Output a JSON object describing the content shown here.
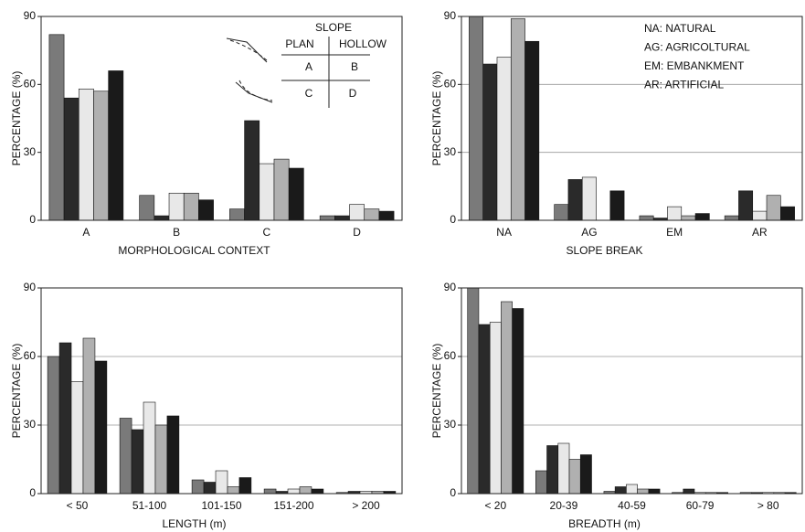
{
  "chart_data": [
    {
      "type": "bar",
      "x_label": "MORPHOLOGICAL CONTEXT",
      "y_label": "PERCENTAGE (%)",
      "categories": [
        "A",
        "B",
        "C",
        "D"
      ],
      "series": [
        {
          "color": "#7a7a7a",
          "values": [
            82,
            11,
            5,
            2
          ]
        },
        {
          "color": "#2a2a2a",
          "values": [
            54,
            2,
            44,
            2
          ]
        },
        {
          "color": "#e8e8e8",
          "values": [
            58,
            12,
            25,
            7
          ]
        },
        {
          "color": "#b0b0b0",
          "values": [
            57,
            12,
            27,
            5
          ]
        },
        {
          "color": "#1a1a1a",
          "values": [
            66,
            9,
            23,
            4
          ]
        }
      ],
      "ylim": [
        0,
        90
      ],
      "yticks": [
        0,
        30,
        60,
        90
      ],
      "grid": false,
      "inset": {
        "title": "SLOPE",
        "columns": [
          "PLAN",
          "HOLLOW"
        ],
        "cells": [
          [
            "A",
            "B"
          ],
          [
            "C",
            "D"
          ]
        ]
      }
    },
    {
      "type": "bar",
      "x_label": "SLOPE BREAK",
      "y_label": "PERCENTAGE (%)",
      "categories": [
        "NA",
        "AG",
        "EM",
        "AR"
      ],
      "series": [
        {
          "color": "#7a7a7a",
          "values": [
            90,
            7,
            2,
            2
          ]
        },
        {
          "color": "#2a2a2a",
          "values": [
            69,
            18,
            1,
            13
          ]
        },
        {
          "color": "#e8e8e8",
          "values": [
            72,
            19,
            6,
            4
          ]
        },
        {
          "color": "#b0b0b0",
          "values": [
            89,
            0,
            2,
            11
          ]
        },
        {
          "color": "#1a1a1a",
          "values": [
            79,
            13,
            3,
            6
          ]
        }
      ],
      "ylim": [
        0,
        90
      ],
      "yticks": [
        0,
        30,
        60,
        90
      ],
      "grid": true,
      "annotations": [
        "NA: NATURAL",
        "AG: AGRICOLTURAL",
        "EM: EMBANKMENT",
        "AR: ARTIFICIAL"
      ]
    },
    {
      "type": "bar",
      "x_label": "LENGTH (m)",
      "y_label": "PERCENTAGE (%)",
      "categories": [
        "< 50",
        "51-100",
        "101-150",
        "151-200",
        "> 200"
      ],
      "series": [
        {
          "color": "#7a7a7a",
          "values": [
            60,
            33,
            6,
            2,
            0.5
          ]
        },
        {
          "color": "#2a2a2a",
          "values": [
            66,
            28,
            5,
            1,
            1
          ]
        },
        {
          "color": "#e8e8e8",
          "values": [
            49,
            40,
            10,
            2,
            1
          ]
        },
        {
          "color": "#b0b0b0",
          "values": [
            68,
            30,
            3,
            3,
            1
          ]
        },
        {
          "color": "#1a1a1a",
          "values": [
            58,
            34,
            7,
            2,
            1
          ]
        }
      ],
      "ylim": [
        0,
        90
      ],
      "yticks": [
        0,
        30,
        60,
        90
      ],
      "grid": true
    },
    {
      "type": "bar",
      "x_label": "BREADTH (m)",
      "y_label": "PERCENTAGE (%)",
      "categories": [
        "< 20",
        "20-39",
        "40-59",
        "60-79",
        "> 80"
      ],
      "series": [
        {
          "color": "#7a7a7a",
          "values": [
            90,
            10,
            1,
            0.5,
            0.5
          ]
        },
        {
          "color": "#2a2a2a",
          "values": [
            74,
            21,
            3,
            2,
            0.5
          ]
        },
        {
          "color": "#e8e8e8",
          "values": [
            75,
            22,
            4,
            0.5,
            0.5
          ]
        },
        {
          "color": "#b0b0b0",
          "values": [
            84,
            15,
            2,
            0.5,
            0.5
          ]
        },
        {
          "color": "#1a1a1a",
          "values": [
            81,
            17,
            2,
            0.5,
            0.5
          ]
        }
      ],
      "ylim": [
        0,
        90
      ],
      "yticks": [
        0,
        30,
        60,
        90
      ],
      "grid": true
    }
  ]
}
